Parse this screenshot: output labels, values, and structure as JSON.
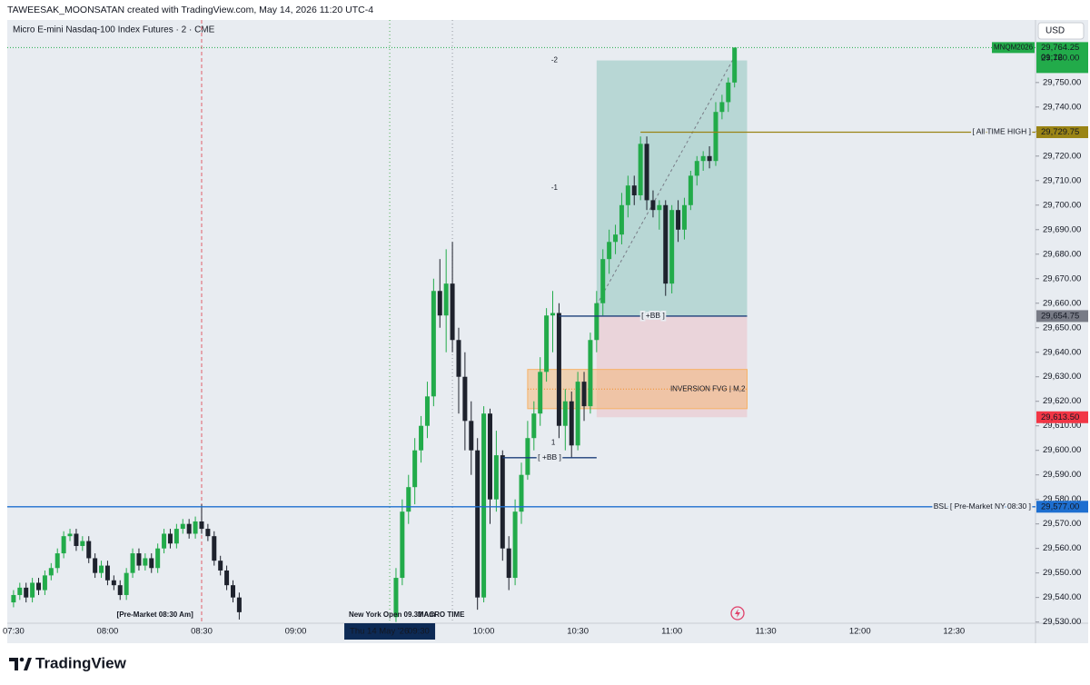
{
  "header": {
    "author_line": "TAWEESAK_MOONSATAN created with TradingView.com, May 14, 2026 11:20 UTC-4",
    "symbol": "Micro E-mini Nasdaq-100 Index Futures · 2 · CME",
    "currency": "USD"
  },
  "footer": {
    "brand": "TradingView"
  },
  "chart_data": {
    "type": "candlestick",
    "x": [
      "07:30",
      "07:32",
      "07:34",
      "07:36",
      "07:38",
      "07:40",
      "07:42",
      "07:44",
      "07:46",
      "07:48",
      "07:50",
      "07:52",
      "07:54",
      "07:56",
      "07:58",
      "08:00",
      "08:02",
      "08:04",
      "08:06",
      "08:08",
      "08:10",
      "08:12",
      "08:14",
      "08:16",
      "08:18",
      "08:20",
      "08:22",
      "08:24",
      "08:26",
      "08:28",
      "08:30",
      "08:32",
      "08:34",
      "08:36",
      "08:38",
      "08:40",
      "08:42",
      "09:32",
      "09:34",
      "09:36",
      "09:38",
      "09:40",
      "09:42",
      "09:44",
      "09:46",
      "09:48",
      "09:50",
      "09:52",
      "09:54",
      "09:56",
      "09:58",
      "10:00",
      "10:02",
      "10:04",
      "10:06",
      "10:08",
      "10:10",
      "10:12",
      "10:14",
      "10:16",
      "10:18",
      "10:20",
      "10:22",
      "10:24",
      "10:26",
      "10:28",
      "10:30",
      "10:32",
      "10:34",
      "10:36",
      "10:38",
      "10:40",
      "10:42",
      "10:44",
      "10:46",
      "10:48",
      "10:50",
      "10:52",
      "10:54",
      "10:56",
      "10:58",
      "11:00",
      "11:02",
      "11:04",
      "11:06",
      "11:08",
      "11:10",
      "11:12",
      "11:14",
      "11:16",
      "11:18",
      "11:20"
    ],
    "open": [
      29538,
      29541,
      29544,
      29540,
      29546,
      29543,
      29549,
      29552,
      29558,
      29565,
      29566,
      29561,
      29563,
      29556,
      29550,
      29553,
      29547,
      29545,
      29541,
      29550,
      29558,
      29553,
      29556,
      29552,
      29560,
      29566,
      29562,
      29568,
      29570,
      29566,
      29571,
      29568,
      29565,
      29555,
      29551,
      29545,
      29540,
      29532,
      29548,
      29575,
      29585,
      29600,
      29610,
      29622,
      29665,
      29655,
      29668,
      29645,
      29630,
      29612,
      29600,
      29540,
      29615,
      29580,
      29598,
      29560,
      29548,
      29575,
      29590,
      29605,
      29615,
      29632,
      29655,
      29656,
      29610,
      29620,
      29602,
      29628,
      29618,
      29645,
      29660,
      29678,
      29685,
      29688,
      29700,
      29708,
      29704,
      29725,
      29702,
      29698,
      29700,
      29668,
      29698,
      29690,
      29700,
      29712,
      29718,
      29720,
      29718,
      29738,
      29742,
      29750
    ],
    "high": [
      29543,
      29546,
      29546,
      29548,
      29548,
      29551,
      29554,
      29560,
      29567,
      29568,
      29568,
      29565,
      29565,
      29558,
      29555,
      29555,
      29549,
      29547,
      29552,
      29560,
      29560,
      29558,
      29558,
      29562,
      29568,
      29568,
      29570,
      29572,
      29572,
      29573,
      29578,
      29570,
      29567,
      29557,
      29553,
      29547,
      29542,
      29552,
      29580,
      29590,
      29605,
      29614,
      29628,
      29670,
      29678,
      29682,
      29685,
      29650,
      29640,
      29620,
      29605,
      29618,
      29617,
      29608,
      29600,
      29565,
      29580,
      29595,
      29612,
      29620,
      29638,
      29658,
      29665,
      29660,
      29625,
      29624,
      29632,
      29632,
      29648,
      29665,
      29682,
      29690,
      29692,
      29705,
      29712,
      29712,
      29728,
      29728,
      29706,
      29702,
      29702,
      29700,
      29702,
      29703,
      29714,
      29720,
      29722,
      29724,
      29742,
      29745,
      29752,
      29764.25
    ],
    "low": [
      29536,
      29539,
      29538,
      29538,
      29541,
      29541,
      29547,
      29550,
      29556,
      29563,
      29559,
      29559,
      29554,
      29548,
      29548,
      29545,
      29543,
      29539,
      29539,
      29548,
      29551,
      29551,
      29550,
      29550,
      29558,
      29560,
      29560,
      29566,
      29564,
      29564,
      29566,
      29563,
      29553,
      29549,
      29543,
      29538,
      29531,
      29530,
      29545,
      29570,
      29578,
      29595,
      29605,
      29618,
      29650,
      29640,
      29640,
      29615,
      29600,
      29590,
      29535,
      29538,
      29570,
      29575,
      29555,
      29543,
      29545,
      29570,
      29588,
      29600,
      29610,
      29628,
      29640,
      29605,
      29600,
      29597,
      29600,
      29612,
      29615,
      29640,
      29655,
      29672,
      29680,
      29684,
      29695,
      29700,
      29702,
      29698,
      29695,
      29690,
      29663,
      29664,
      29685,
      29686,
      29698,
      29708,
      29714,
      29715,
      29716,
      29735,
      29738,
      29748
    ],
    "close": [
      29541,
      29544,
      29540,
      29546,
      29543,
      29549,
      29552,
      29558,
      29565,
      29566,
      29561,
      29563,
      29556,
      29550,
      29553,
      29547,
      29545,
      29541,
      29550,
      29558,
      29553,
      29556,
      29552,
      29560,
      29566,
      29562,
      29568,
      29570,
      29566,
      29571,
      29568,
      29565,
      29555,
      29551,
      29545,
      29540,
      29534,
      29548,
      29575,
      29585,
      29600,
      29610,
      29622,
      29665,
      29655,
      29668,
      29645,
      29630,
      29612,
      29600,
      29540,
      29615,
      29580,
      29598,
      29560,
      29548,
      29575,
      29590,
      29605,
      29615,
      29632,
      29655,
      29656,
      29610,
      29620,
      29602,
      29628,
      29618,
      29645,
      29660,
      29678,
      29685,
      29688,
      29700,
      29708,
      29704,
      29725,
      29702,
      29698,
      29700,
      29668,
      29698,
      29690,
      29700,
      29712,
      29718,
      29720,
      29718,
      29738,
      29742,
      29750,
      29764.25
    ],
    "up_color": "#22ab4a",
    "down_color": "#1e222d",
    "ylim": [
      29529.5,
      29775.5
    ],
    "yticks": [
      {
        "value": 29530,
        "label": "29,530.00"
      },
      {
        "value": 29540,
        "label": "29,540.00"
      },
      {
        "value": 29550,
        "label": "29,550.00"
      },
      {
        "value": 29560,
        "label": "29,560.00"
      },
      {
        "value": 29570,
        "label": "29,570.00"
      },
      {
        "value": 29580,
        "label": "29,580.00"
      },
      {
        "value": 29590,
        "label": "29,590.00"
      },
      {
        "value": 29600,
        "label": "29,600.00"
      },
      {
        "value": 29610,
        "label": "29,610.00"
      },
      {
        "value": 29620,
        "label": "29,620.00"
      },
      {
        "value": 29630,
        "label": "29,630.00"
      },
      {
        "value": 29640,
        "label": "29,640.00"
      },
      {
        "value": 29650,
        "label": "29,650.00"
      },
      {
        "value": 29660,
        "label": "29,660.00"
      },
      {
        "value": 29670,
        "label": "29,670.00"
      },
      {
        "value": 29680,
        "label": "29,680.00"
      },
      {
        "value": 29690,
        "label": "29,690.00"
      },
      {
        "value": 29700,
        "label": "29,700.00"
      },
      {
        "value": 29710,
        "label": "29,710.00"
      },
      {
        "value": 29720,
        "label": "29,720.00"
      },
      {
        "value": 29730,
        "label": "29,730.00"
      },
      {
        "value": 29740,
        "label": "29,740.00"
      },
      {
        "value": 29750,
        "label": "29,750.00"
      }
    ],
    "xlim": [
      "07:28",
      "12:56"
    ],
    "xticks": [
      "07:30",
      "08:00",
      "08:30",
      "09:00",
      "10:00",
      "10:30",
      "11:00",
      "11:30",
      "12:00",
      "12:30"
    ],
    "crosshair_label": {
      "date": "Thu 14 May '26",
      "time": "09:30"
    },
    "last_price": {
      "symbol": "MNQM2026",
      "price": {
        "value": 29764.25,
        "label": "29,764.25"
      },
      "countdown": "01:12",
      "level": {
        "value": 29760,
        "label": "29,760.00"
      },
      "color": "#22ab4a"
    },
    "levels": [
      {
        "name": "[ All TIME HIGH ]",
        "price": {
          "value": 29729.75,
          "label": "29,729.75"
        },
        "from": "10:50",
        "extend": "right",
        "color": "#9a8415"
      },
      {
        "name": "BSL [ Pre-Market NY 08:30 ]",
        "price": {
          "value": 29577,
          "label": "29,577.00"
        },
        "extend": "both",
        "color": "#1e6fd0"
      },
      {
        "name": "[ +BB ]",
        "price": 29654.75,
        "from": "10:24",
        "to": "11:24",
        "extend": "none",
        "color": "#1c3f7a"
      },
      {
        "name": "[ +BB ]",
        "price": 29597,
        "from": "10:06",
        "to": "10:36",
        "extend": "none",
        "color": "#1c3f7a"
      }
    ],
    "position": {
      "from": "10:36",
      "to": "11:24",
      "entry": {
        "value": 29654.75,
        "label": "29,654.75"
      },
      "target": 29759,
      "stop": {
        "value": 29613.5,
        "label": "29,613.50"
      },
      "target_color": "#5fb3a0",
      "stop_color": "#ef9aa6",
      "entry_color": "#787b86",
      "tag_stop_color": "#f23645",
      "ratio_labels": [
        {
          "text": "-2",
          "price": 29759
        },
        {
          "text": "-1",
          "price": 29707
        },
        {
          "text": "1",
          "price": 29603
        }
      ]
    },
    "zones": [
      {
        "name": "INVERSION FVG | M,2",
        "top": 29633,
        "bottom": 29617,
        "from": "10:14",
        "to": "11:24",
        "color": "#f7b267",
        "text_color": "#f08a24"
      }
    ],
    "verticals": [
      {
        "time": "08:30",
        "color": "#e0606a",
        "dash": "4 3"
      },
      {
        "time": "09:30",
        "color": "#4caf50",
        "dash": "1 3"
      },
      {
        "time": "09:50",
        "color": "#9598a1",
        "dash": "1 3"
      }
    ],
    "notes": [
      {
        "text": "[Pre-Market 08:30 Am]",
        "time": "08:18",
        "color": "#a3195b"
      },
      {
        "text": "New York Open 09.30 Am",
        "time": "09:32",
        "color": "#1c3f7a"
      },
      {
        "text": "MACRO TIME",
        "time": "09:54",
        "color": "#1c3f7a"
      }
    ]
  }
}
